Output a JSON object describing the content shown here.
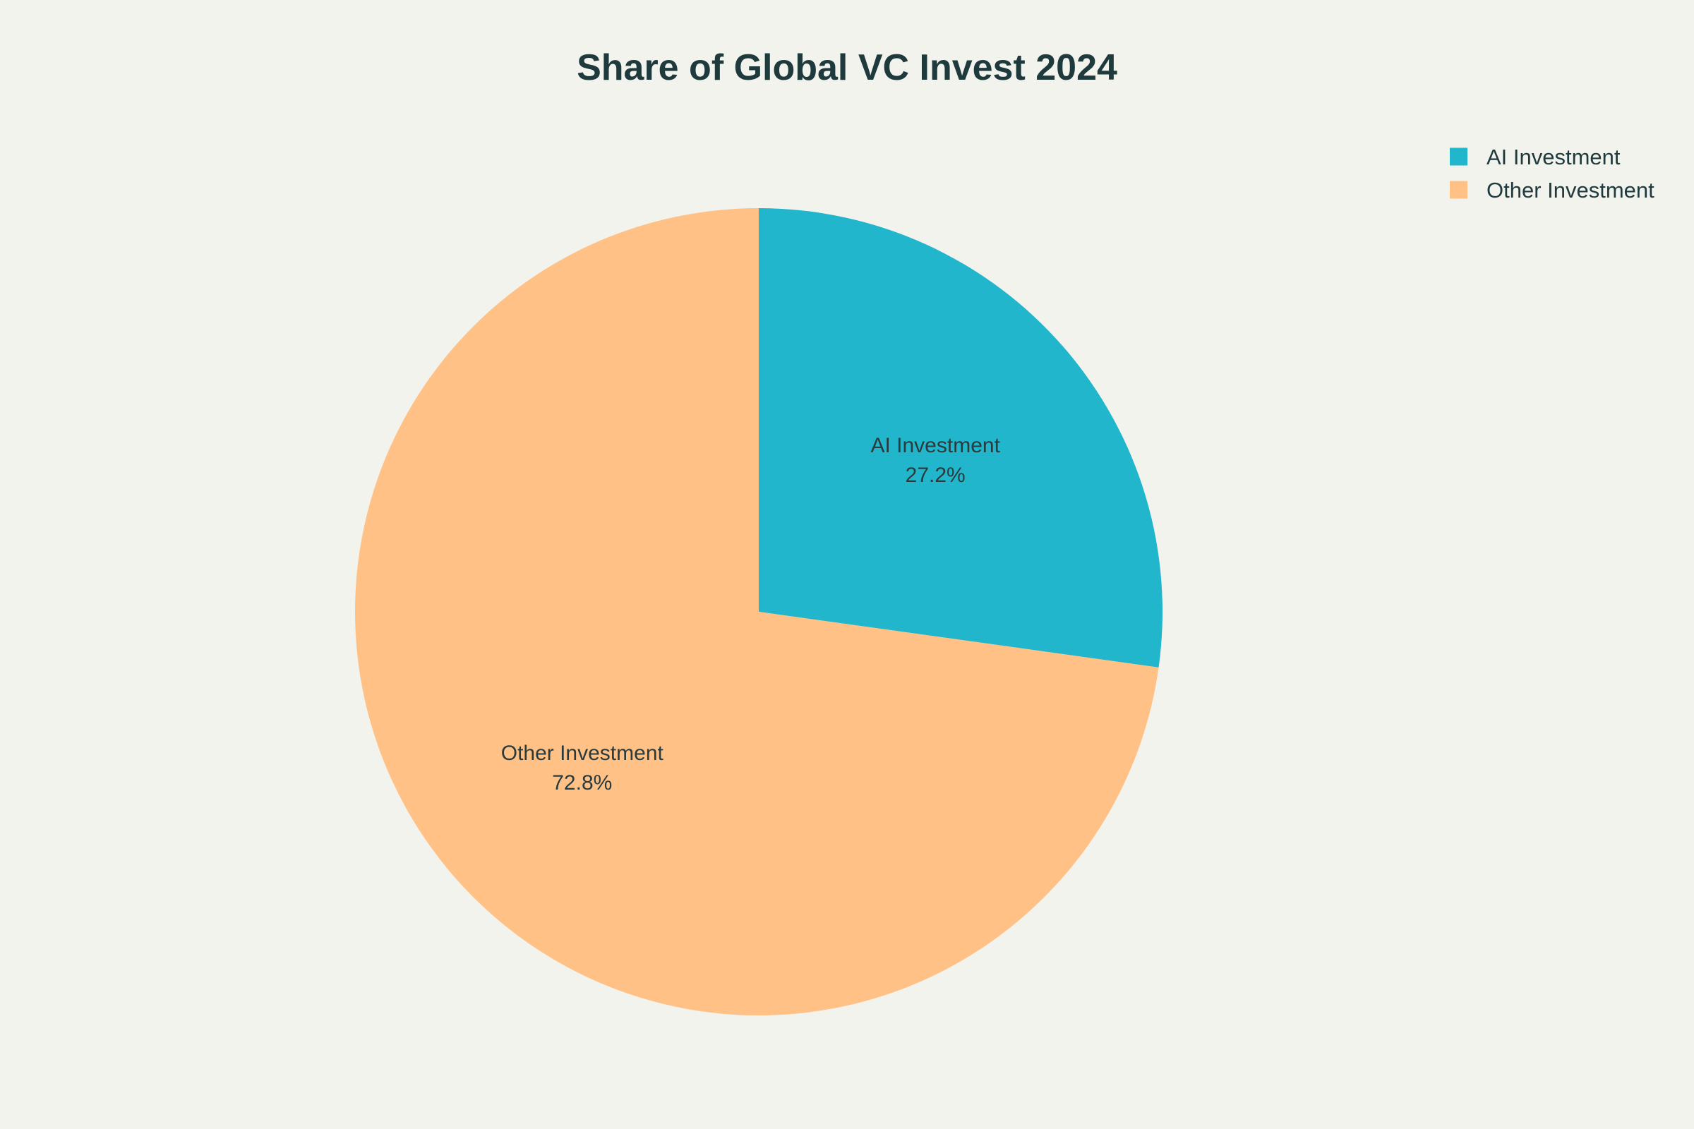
{
  "chart_data": {
    "type": "pie",
    "title": "Share of Global VC Invest 2024",
    "slices": [
      {
        "label": "AI Investment",
        "value": 27.2,
        "display": "27.2%",
        "color": "#21b6cb"
      },
      {
        "label": "Other Investment",
        "value": 72.8,
        "display": "72.8%",
        "color": "#ffc185"
      }
    ],
    "legend": {
      "position": "top-right",
      "entries": [
        "AI Investment",
        "Other Investment"
      ]
    },
    "start_angle": "12 o'clock",
    "direction": "clockwise"
  },
  "colors": {
    "background": "#f3f3ee",
    "text": "#1f3a3d"
  }
}
